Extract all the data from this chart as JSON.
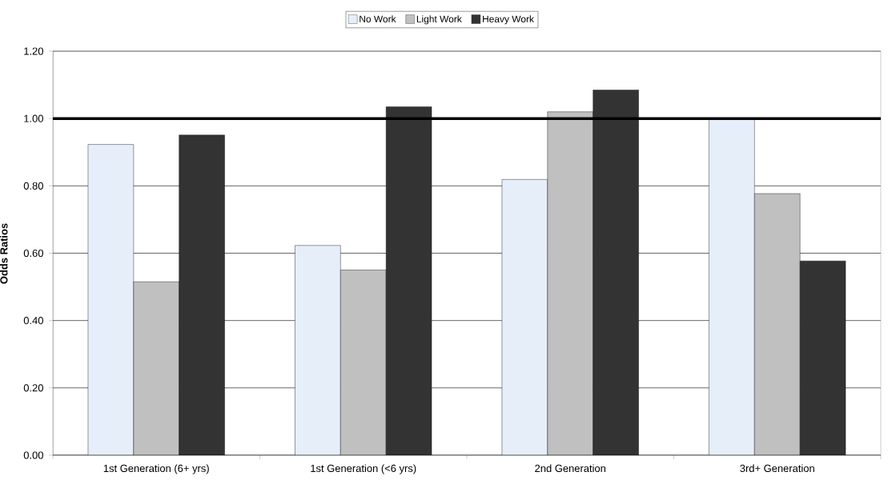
{
  "chart_data": {
    "type": "bar",
    "ylabel": "Odds Ratios",
    "categories": [
      "1st Generation (6+ yrs)",
      "1st Generation (<6 yrs)",
      "2nd Generation",
      "3rd+ Generation"
    ],
    "series": [
      {
        "name": "No Work",
        "color": "#e6eef9",
        "values": [
          0.923,
          0.623,
          0.819,
          1.0
        ]
      },
      {
        "name": "Light Work",
        "color": "#c0c0c0",
        "values": [
          0.515,
          0.55,
          1.02,
          0.777
        ]
      },
      {
        "name": "Heavy Work",
        "color": "#333333",
        "values": [
          0.951,
          1.035,
          1.085,
          0.577
        ]
      }
    ],
    "ylim": [
      0,
      1.2
    ],
    "yticks": [
      {
        "value": 0,
        "label": "0.00"
      },
      {
        "value": 0.2,
        "label": "0.20"
      },
      {
        "value": 0.4,
        "label": "0.40"
      },
      {
        "value": 0.6,
        "label": "0.60"
      },
      {
        "value": 0.8,
        "label": "0.80"
      },
      {
        "value": 1.0,
        "label": "1.00"
      },
      {
        "value": 1.2,
        "label": "1.20"
      }
    ],
    "grid": "y",
    "legend": "top",
    "ref_lines": [
      {
        "axis": "y",
        "value": 1.0,
        "color": "#000000"
      }
    ]
  }
}
